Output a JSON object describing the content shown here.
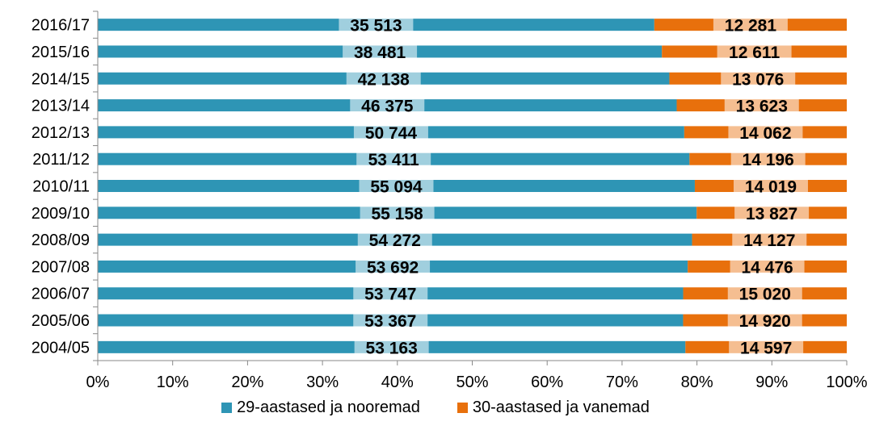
{
  "chart_data": {
    "type": "bar",
    "orientation": "horizontal",
    "stacked": "percent",
    "categories": [
      "2016/17",
      "2015/16",
      "2014/15",
      "2013/14",
      "2012/13",
      "2011/12",
      "2010/11",
      "2009/10",
      "2008/09",
      "2007/08",
      "2006/07",
      "2005/06",
      "2004/05"
    ],
    "series": [
      {
        "name": "29-aastased ja nooremad",
        "color": "#2E95B5",
        "values": [
          35513,
          38481,
          42138,
          46375,
          50744,
          53411,
          55094,
          55158,
          54272,
          53692,
          53747,
          53367,
          53163
        ],
        "labels": [
          "35 513",
          "38 481",
          "42 138",
          "46 375",
          "50 744",
          "53 411",
          "55 094",
          "55 158",
          "54 272",
          "53 692",
          "53 747",
          "53 367",
          "53 163"
        ]
      },
      {
        "name": "30-aastased ja vanemad",
        "color": "#E8700C",
        "values": [
          12281,
          12611,
          13076,
          13623,
          14062,
          14196,
          14019,
          13827,
          14127,
          14476,
          15020,
          14920,
          14597
        ],
        "labels": [
          "12 281",
          "12 611",
          "13 076",
          "13 623",
          "14 062",
          "14 196",
          "14 019",
          "13 827",
          "14 127",
          "14 476",
          "15 020",
          "14 920",
          "14 597"
        ]
      }
    ],
    "xticks": [
      "0%",
      "10%",
      "20%",
      "30%",
      "40%",
      "50%",
      "60%",
      "70%",
      "80%",
      "90%",
      "100%"
    ],
    "xlim": [
      0,
      100
    ],
    "grid": false,
    "legend_position": "bottom",
    "title": "",
    "xlabel": "",
    "ylabel": ""
  }
}
